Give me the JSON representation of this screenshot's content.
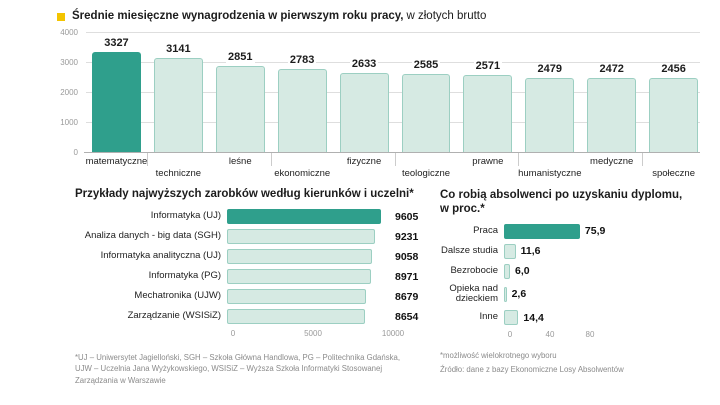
{
  "colors": {
    "bar_highlight": "#2f9f8c",
    "bar_fill": "#d6eae3",
    "bar_border": "#9ccfc2",
    "bullet": "#f3c400",
    "grid": "#dedede",
    "axis_text": "#9a9a9a",
    "text": "#1c1c1c",
    "footnote_text": "#8b8b8b"
  },
  "chart_data": [
    {
      "type": "bar",
      "orientation": "vertical",
      "title": "Średnie miesięczne wynagrodzenia w pierwszym roku pracy,",
      "subtitle": "w złotych brutto",
      "categories": [
        "matematyczne",
        "techniczne",
        "leśne",
        "ekonomiczne",
        "fizyczne",
        "teologiczne",
        "prawne",
        "humanistyczne",
        "medyczne",
        "społeczne"
      ],
      "values": [
        3327,
        3141,
        2851,
        2783,
        2633,
        2585,
        2571,
        2479,
        2472,
        2456
      ],
      "ylim": [
        0,
        4000
      ],
      "yticks": [
        0,
        1000,
        2000,
        3000,
        4000
      ],
      "highlight_index": 0,
      "grid": true,
      "legend": false
    },
    {
      "type": "bar",
      "orientation": "horizontal",
      "title": "Przykłady najwyższych zarobków według kierunków i uczelni*",
      "categories": [
        "Informatyka (UJ)",
        "Analiza danych - big data (SGH)",
        "Informatyka analityczna (UJ)",
        "Informatyka (PG)",
        "Mechatronika (UJW)",
        "Zarządzanie (WSISiZ)"
      ],
      "values": [
        9605,
        9231,
        9058,
        8971,
        8679,
        8654
      ],
      "xlim": [
        0,
        10000
      ],
      "xticks": [
        0,
        5000,
        10000
      ],
      "highlight_index": 0,
      "grid": false,
      "legend": false
    },
    {
      "type": "bar",
      "orientation": "horizontal",
      "title": "Co robią absolwenci po uzyskaniu dyplomu, w proc.*",
      "categories": [
        "Praca",
        "Dalsze studia",
        "Bezrobocie",
        "Opieka nad dzieckiem",
        "Inne"
      ],
      "values": [
        75.9,
        11.6,
        6.0,
        2.6,
        14.4
      ],
      "value_labels": [
        "75,9",
        "11,6",
        "6,0",
        "2,6",
        "14,4"
      ],
      "xlim": [
        0,
        80
      ],
      "xticks": [
        0,
        40,
        80
      ],
      "highlight_index": 0,
      "grid": false,
      "legend": false
    }
  ],
  "footnotes": {
    "abbreviations": "*UJ – Uniwersytet Jagielloński, SGH – Szkoła Główna Handlowa, PG – Politechnika Gdańska, UJW – Uczelnia Jana Wyżykowskiego, WSISiZ – Wyższa Szkoła Informatyki Stosowanej Zarządzania w Warszawie",
    "multi_choice": "*możliwość wielokrotnego wyboru",
    "source": "Źródło: dane z bazy Ekonomiczne Losy Absolwentów"
  }
}
